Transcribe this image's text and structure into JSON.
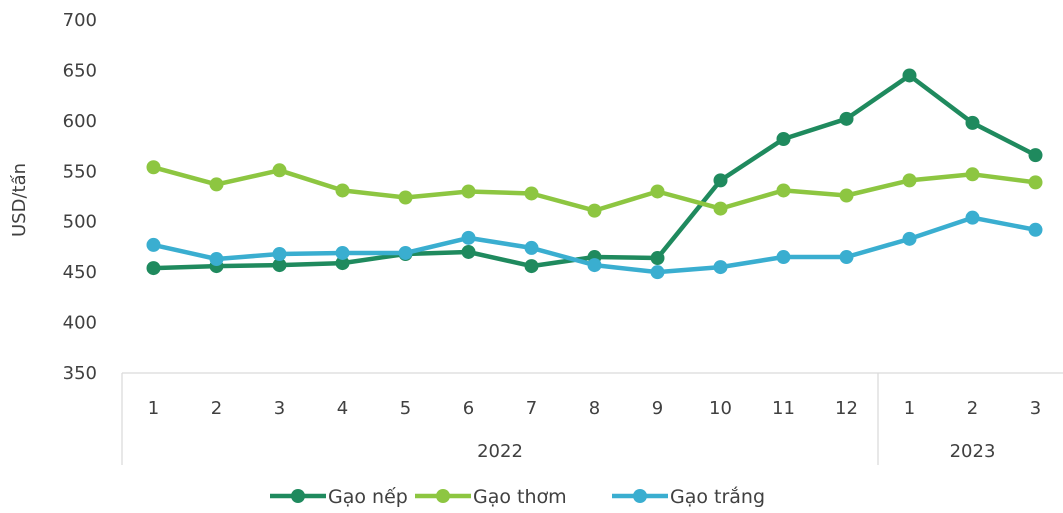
{
  "chart_data": {
    "type": "line",
    "ylabel": "USD/tấn",
    "ylim": [
      350,
      700
    ],
    "yticks": [
      350,
      400,
      450,
      500,
      550,
      600,
      650,
      700
    ],
    "x": [
      "1",
      "2",
      "3",
      "4",
      "5",
      "6",
      "7",
      "8",
      "9",
      "10",
      "11",
      "12",
      "1",
      "2",
      "3"
    ],
    "groups": [
      {
        "label": "2022",
        "count": 12
      },
      {
        "label": "2023",
        "count": 3
      }
    ],
    "legend_position": "bottom",
    "series": [
      {
        "name": "Gạo nếp",
        "color": "#1f8a5e",
        "values": [
          454,
          456,
          457,
          459,
          468,
          470,
          456,
          465,
          464,
          541,
          582,
          602,
          645,
          598,
          566
        ]
      },
      {
        "name": "Gạo thơm",
        "color": "#8dc641",
        "values": [
          554,
          537,
          551,
          531,
          524,
          530,
          528,
          511,
          530,
          513,
          531,
          526,
          541,
          547,
          539
        ]
      },
      {
        "name": "Gạo trắng",
        "color": "#3aaed0",
        "values": [
          477,
          463,
          468,
          469,
          469,
          484,
          474,
          457,
          450,
          455,
          465,
          465,
          483,
          504,
          492
        ]
      }
    ]
  }
}
